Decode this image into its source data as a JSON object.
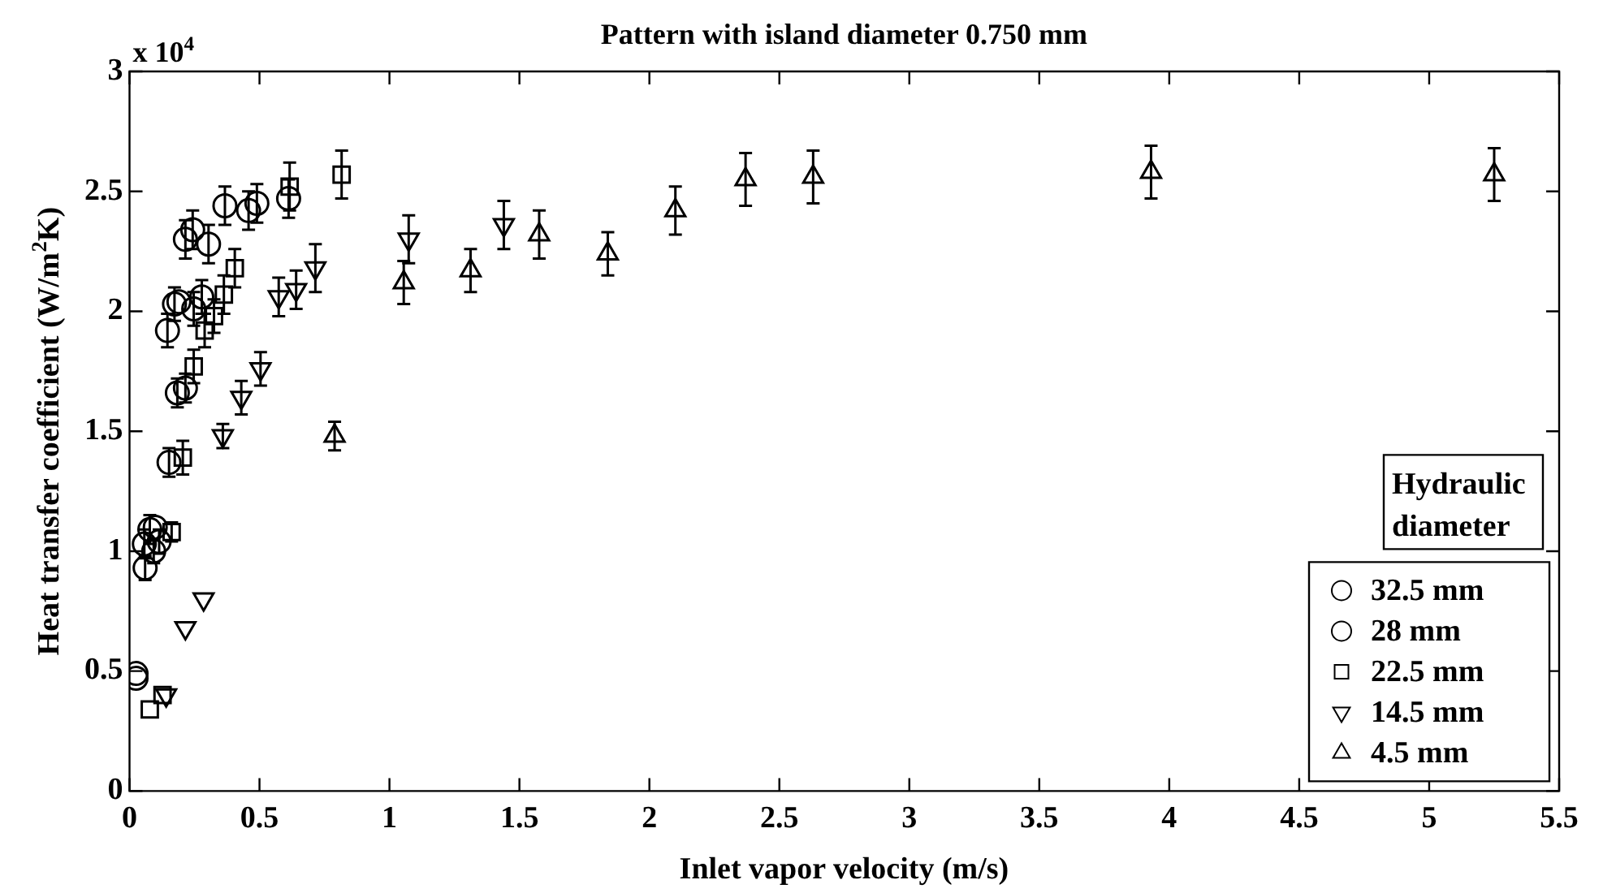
{
  "chart_data": {
    "type": "scatter",
    "title": "Pattern with island diameter 0.750 mm",
    "xlabel": "Inlet vapor velocity (m/s)",
    "ylabel": "Heat transfer coefficient (W/m$^{2}$K)",
    "legend_title": "Hydraulic diameter",
    "legend": "bottom right",
    "grid": false,
    "annotations": [
      "x 10$^{4}$"
    ],
    "xlim": [
      0,
      5.5
    ],
    "xticks": [
      0,
      0.5,
      1,
      1.5,
      2,
      2.5,
      3,
      3.5,
      4,
      4.5,
      5,
      5.5
    ],
    "ylim": [
      0,
      3
    ],
    "yticks": [
      0,
      0.5,
      1,
      1.5,
      2,
      2.5,
      3
    ],
    "series": [
      {
        "name": "32.5 mm",
        "color": "#000000",
        "marker": "circle",
        "x": [
          0.025,
          0.057,
          0.078,
          0.099,
          0.146,
          0.173,
          0.19,
          0.215,
          0.243,
          0.367,
          0.49
        ],
        "values": [
          0.47,
          1.03,
          1.09,
          1.1,
          1.92,
          2.03,
          2.04,
          2.3,
          2.34,
          2.44,
          2.45
        ],
        "errors": [
          null,
          0.06,
          0.06,
          null,
          0.07,
          0.07,
          null,
          0.08,
          0.08,
          0.08,
          0.08
        ]
      },
      {
        "name": "28 mm",
        "color": "#000000",
        "marker": "circle",
        "x": [
          0.025,
          0.06,
          0.093,
          0.114,
          0.152,
          0.184,
          0.215,
          0.247,
          0.278,
          0.304,
          0.458,
          0.612
        ],
        "values": [
          0.49,
          0.93,
          1.0,
          1.04,
          1.37,
          1.66,
          1.68,
          2.01,
          2.06,
          2.28,
          2.42,
          2.47
        ],
        "errors": [
          null,
          0.05,
          0.05,
          0.05,
          0.06,
          0.06,
          0.06,
          0.07,
          0.07,
          0.08,
          0.08,
          0.08
        ]
      },
      {
        "name": "22.5 mm",
        "color": "#000000",
        "marker": "square",
        "x": [
          0.078,
          0.127,
          0.162,
          0.205,
          0.247,
          0.289,
          0.325,
          0.363,
          0.405,
          0.616,
          0.816
        ],
        "values": [
          0.34,
          0.4,
          1.08,
          1.39,
          1.77,
          1.92,
          1.98,
          2.07,
          2.18,
          2.52,
          2.57
        ],
        "errors": [
          null,
          null,
          0.04,
          0.07,
          0.07,
          0.07,
          0.07,
          0.08,
          0.08,
          0.1,
          0.1
        ]
      },
      {
        "name": "14.5 mm",
        "color": "#000000",
        "marker": "triangle-down",
        "x": [
          0.141,
          0.215,
          0.285,
          0.359,
          0.43,
          0.504,
          0.574,
          0.641,
          0.715,
          1.074,
          1.44
        ],
        "values": [
          0.4,
          0.68,
          0.8,
          1.48,
          1.64,
          1.76,
          2.06,
          2.09,
          2.18,
          2.3,
          2.36
        ],
        "errors": [
          null,
          null,
          null,
          0.05,
          0.07,
          0.07,
          0.08,
          0.08,
          0.1,
          0.1,
          0.1
        ]
      },
      {
        "name": "4.5 mm",
        "color": "#000000",
        "marker": "triangle",
        "x": [
          0.789,
          1.055,
          1.312,
          1.576,
          1.84,
          2.1,
          2.37,
          2.63,
          3.93,
          5.25
        ],
        "values": [
          1.48,
          2.12,
          2.17,
          2.32,
          2.24,
          2.42,
          2.55,
          2.56,
          2.58,
          2.57
        ],
        "errors": [
          0.06,
          0.09,
          0.09,
          0.1,
          0.09,
          0.1,
          0.11,
          0.11,
          0.11,
          0.11
        ]
      }
    ]
  }
}
